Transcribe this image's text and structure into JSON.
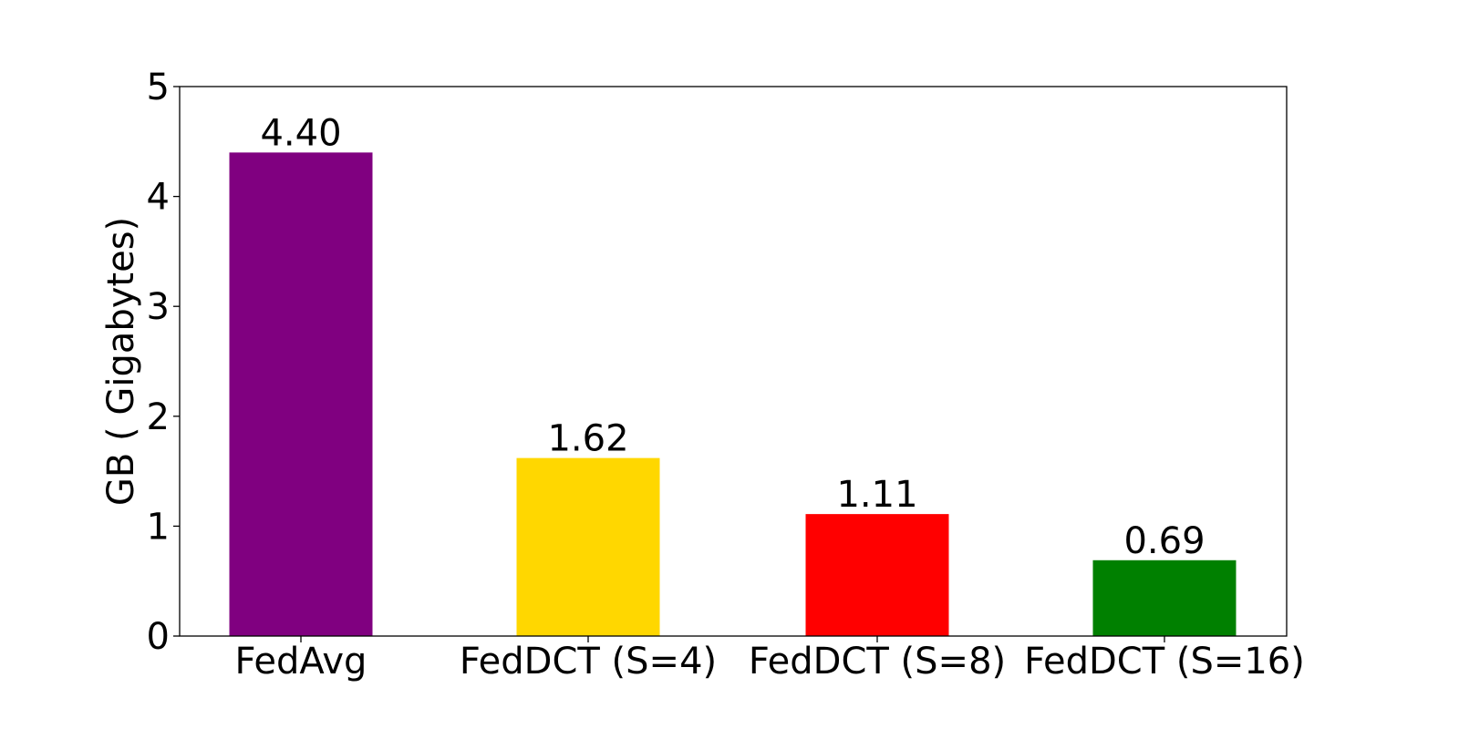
{
  "chart_data": {
    "type": "bar",
    "categories": [
      "FedAvg",
      "FedDCT (S=4)",
      "FedDCT (S=8)",
      "FedDCT (S=16)"
    ],
    "values": [
      4.4,
      1.62,
      1.11,
      0.69
    ],
    "value_labels": [
      "4.40",
      "1.62",
      "1.11",
      "0.69"
    ],
    "colors": [
      "#800080",
      "#FFD700",
      "#FF0000",
      "#008000"
    ],
    "title": "",
    "xlabel": "",
    "ylabel": "GB ( Gigabytes)",
    "ylim": [
      0,
      5
    ],
    "yticks": [
      0,
      1,
      2,
      3,
      4,
      5
    ],
    "ytick_labels": [
      "0",
      "1",
      "2",
      "3",
      "4",
      "5"
    ],
    "grid": false,
    "legend": "none"
  }
}
